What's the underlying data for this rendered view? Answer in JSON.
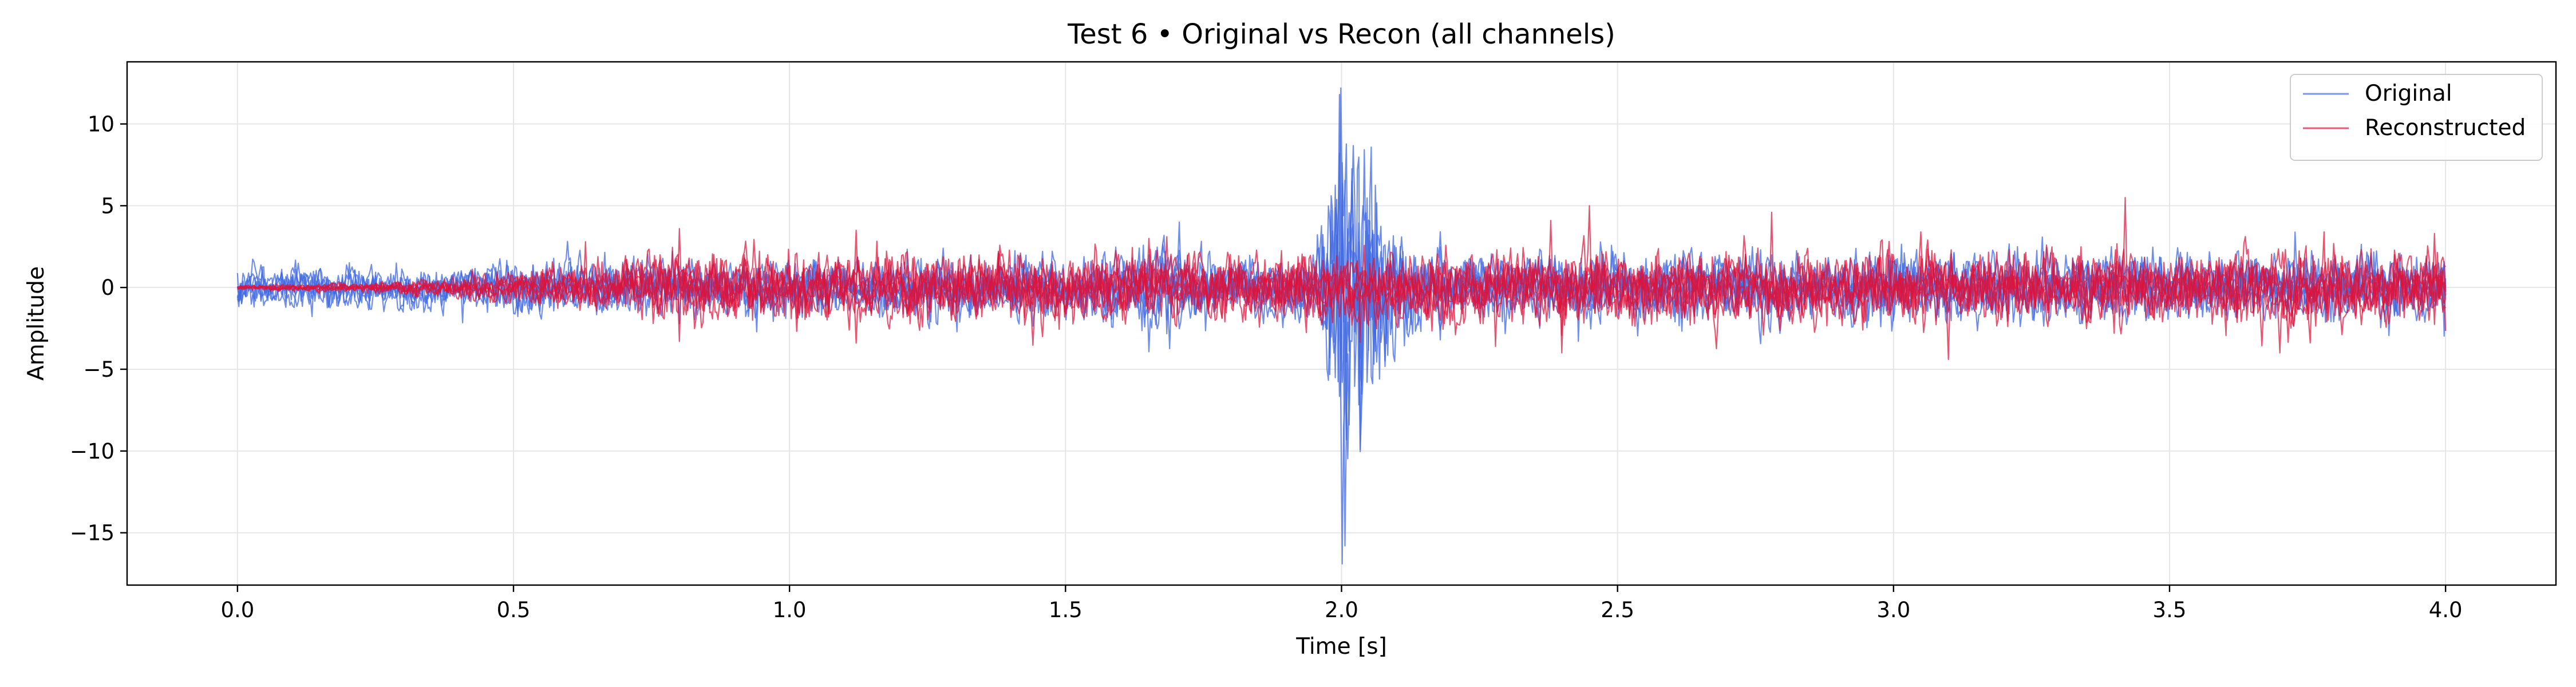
{
  "chart_data": {
    "type": "line",
    "title": "Test 6 • Original vs Recon (all channels)",
    "xlabel": "Time [s]",
    "ylabel": "Amplitude",
    "xlim": [
      -0.2,
      4.2
    ],
    "ylim": [
      -18.2,
      13.8
    ],
    "xticks": [
      0.0,
      0.5,
      1.0,
      1.5,
      2.0,
      2.5,
      3.0,
      3.5,
      4.0
    ],
    "xtick_labels": [
      "0.0",
      "0.5",
      "1.0",
      "1.5",
      "2.0",
      "2.5",
      "3.0",
      "3.5",
      "4.0"
    ],
    "yticks": [
      10,
      5,
      0,
      -5,
      -10,
      -15
    ],
    "ytick_labels": [
      "10",
      "5",
      "0",
      "−5",
      "−10",
      "−15"
    ],
    "grid": true,
    "legend_position": "top-right",
    "series": [
      {
        "name": "Original",
        "color": "#4169e1",
        "channels": 6,
        "profile": [
          [
            0.0,
            0.8
          ],
          [
            0.35,
            0.8
          ],
          [
            0.6,
            1.0
          ],
          [
            1.5,
            1.1
          ],
          [
            1.7,
            1.6
          ],
          [
            1.8,
            1.1
          ],
          [
            1.95,
            1.2
          ],
          [
            2.0,
            8.0
          ],
          [
            2.1,
            2.2
          ],
          [
            2.2,
            1.3
          ],
          [
            4.0,
            1.2
          ]
        ],
        "peaks": [
          [
            1.998,
            12.2
          ],
          [
            2.0,
            -16.9
          ],
          [
            1.995,
            11.8
          ],
          [
            2.006,
            -15.8
          ],
          [
            2.02,
            6.5
          ],
          [
            2.01,
            -9.3
          ],
          [
            2.04,
            5.0
          ],
          [
            1.705,
            4.0
          ],
          [
            2.07,
            -5.6
          ]
        ]
      },
      {
        "name": "Reconstructed",
        "color": "#dc143c",
        "channels": 6,
        "profile": [
          [
            0.0,
            0.08
          ],
          [
            0.3,
            0.25
          ],
          [
            0.6,
            0.8
          ],
          [
            0.8,
            1.3
          ],
          [
            2.0,
            1.3
          ],
          [
            4.0,
            1.4
          ]
        ],
        "peaks": [
          [
            0.63,
            2.8
          ],
          [
            0.8,
            3.6
          ],
          [
            0.8,
            -3.3
          ],
          [
            1.12,
            3.5
          ],
          [
            1.12,
            -3.4
          ],
          [
            1.65,
            3.0
          ],
          [
            2.28,
            -3.6
          ],
          [
            2.38,
            4.1
          ],
          [
            2.45,
            5.0
          ],
          [
            2.4,
            -4.0
          ],
          [
            2.78,
            4.6
          ],
          [
            3.05,
            3.4
          ],
          [
            3.1,
            -4.4
          ],
          [
            3.42,
            5.5
          ],
          [
            3.4,
            -2.8
          ],
          [
            3.78,
            3.4
          ],
          [
            3.7,
            -4.0
          ],
          [
            3.98,
            3.3
          ]
        ]
      }
    ]
  }
}
